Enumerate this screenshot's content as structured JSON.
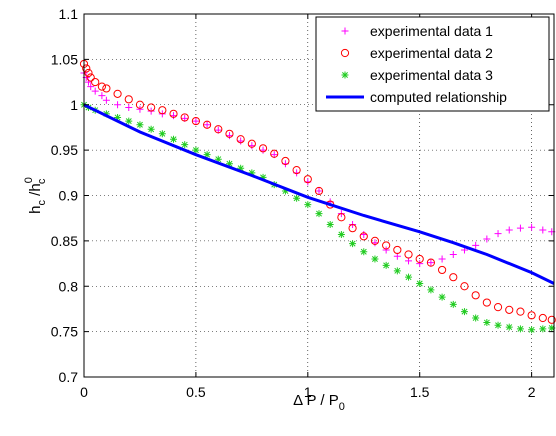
{
  "chart_data": {
    "type": "scatter",
    "xlim": [
      0,
      2.1
    ],
    "ylim": [
      0.7,
      1.1
    ],
    "xticks": [
      "0",
      "0.5",
      "1",
      "1.5",
      "2"
    ],
    "yticks": [
      "0.7",
      "0.75",
      "0.8",
      "0.85",
      "0.9",
      "0.95",
      "1",
      "1.05",
      "1.1"
    ],
    "xlabel": {
      "main": "Δ P / P",
      "sub": "0"
    },
    "ylabel": {
      "main": "h",
      "sub1": "c",
      "mid": " /h",
      "sup": "0",
      "sub2": "c"
    },
    "grid": true,
    "legend_position": "top-right",
    "series": [
      {
        "name": "experimental data 1",
        "marker": "+",
        "color": "#ff00ff",
        "points": [
          [
            0.0,
            1.035
          ],
          [
            0.01,
            1.03
          ],
          [
            0.02,
            1.025
          ],
          [
            0.03,
            1.02
          ],
          [
            0.05,
            1.015
          ],
          [
            0.08,
            1.01
          ],
          [
            0.1,
            1.005
          ],
          [
            0.15,
            1.0
          ],
          [
            0.2,
            0.997
          ],
          [
            0.25,
            0.995
          ],
          [
            0.3,
            0.993
          ],
          [
            0.35,
            0.99
          ],
          [
            0.4,
            0.988
          ],
          [
            0.45,
            0.985
          ],
          [
            0.5,
            0.982
          ],
          [
            0.55,
            0.978
          ],
          [
            0.6,
            0.972
          ],
          [
            0.65,
            0.966
          ],
          [
            0.7,
            0.96
          ],
          [
            0.75,
            0.955
          ],
          [
            0.8,
            0.95
          ],
          [
            0.85,
            0.945
          ],
          [
            0.9,
            0.935
          ],
          [
            0.95,
            0.925
          ],
          [
            1.0,
            0.915
          ],
          [
            1.05,
            0.905
          ],
          [
            1.1,
            0.893
          ],
          [
            1.15,
            0.88
          ],
          [
            1.2,
            0.868
          ],
          [
            1.25,
            0.857
          ],
          [
            1.3,
            0.848
          ],
          [
            1.35,
            0.84
          ],
          [
            1.4,
            0.833
          ],
          [
            1.45,
            0.828
          ],
          [
            1.5,
            0.825
          ],
          [
            1.55,
            0.826
          ],
          [
            1.6,
            0.83
          ],
          [
            1.65,
            0.835
          ],
          [
            1.7,
            0.84
          ],
          [
            1.75,
            0.845
          ],
          [
            1.8,
            0.852
          ],
          [
            1.85,
            0.858
          ],
          [
            1.9,
            0.862
          ],
          [
            1.95,
            0.864
          ],
          [
            2.0,
            0.865
          ],
          [
            2.05,
            0.862
          ],
          [
            2.09,
            0.86
          ]
        ]
      },
      {
        "name": "experimental data 2",
        "marker": "o",
        "color": "#ff0000",
        "points": [
          [
            0.0,
            1.045
          ],
          [
            0.01,
            1.04
          ],
          [
            0.02,
            1.035
          ],
          [
            0.03,
            1.03
          ],
          [
            0.05,
            1.025
          ],
          [
            0.08,
            1.02
          ],
          [
            0.1,
            1.018
          ],
          [
            0.15,
            1.012
          ],
          [
            0.2,
            1.006
          ],
          [
            0.25,
            1.0
          ],
          [
            0.3,
            0.997
          ],
          [
            0.35,
            0.994
          ],
          [
            0.4,
            0.99
          ],
          [
            0.45,
            0.986
          ],
          [
            0.5,
            0.982
          ],
          [
            0.55,
            0.978
          ],
          [
            0.6,
            0.973
          ],
          [
            0.65,
            0.968
          ],
          [
            0.7,
            0.962
          ],
          [
            0.75,
            0.957
          ],
          [
            0.8,
            0.952
          ],
          [
            0.85,
            0.946
          ],
          [
            0.9,
            0.938
          ],
          [
            0.95,
            0.928
          ],
          [
            1.0,
            0.918
          ],
          [
            1.05,
            0.905
          ],
          [
            1.1,
            0.89
          ],
          [
            1.15,
            0.876
          ],
          [
            1.2,
            0.864
          ],
          [
            1.25,
            0.855
          ],
          [
            1.3,
            0.85
          ],
          [
            1.35,
            0.845
          ],
          [
            1.4,
            0.84
          ],
          [
            1.45,
            0.835
          ],
          [
            1.5,
            0.83
          ],
          [
            1.55,
            0.826
          ],
          [
            1.6,
            0.818
          ],
          [
            1.65,
            0.81
          ],
          [
            1.7,
            0.8
          ],
          [
            1.75,
            0.79
          ],
          [
            1.8,
            0.782
          ],
          [
            1.85,
            0.777
          ],
          [
            1.9,
            0.774
          ],
          [
            1.95,
            0.772
          ],
          [
            2.0,
            0.768
          ],
          [
            2.05,
            0.765
          ],
          [
            2.09,
            0.763
          ]
        ]
      },
      {
        "name": "experimental data 3",
        "marker": "*",
        "color": "#22cc22",
        "points": [
          [
            0.0,
            1.0
          ],
          [
            0.02,
            0.997
          ],
          [
            0.05,
            0.994
          ],
          [
            0.1,
            0.99
          ],
          [
            0.15,
            0.986
          ],
          [
            0.2,
            0.982
          ],
          [
            0.25,
            0.978
          ],
          [
            0.3,
            0.973
          ],
          [
            0.35,
            0.968
          ],
          [
            0.4,
            0.962
          ],
          [
            0.45,
            0.956
          ],
          [
            0.5,
            0.95
          ],
          [
            0.55,
            0.945
          ],
          [
            0.6,
            0.94
          ],
          [
            0.65,
            0.935
          ],
          [
            0.7,
            0.93
          ],
          [
            0.75,
            0.925
          ],
          [
            0.8,
            0.92
          ],
          [
            0.85,
            0.912
          ],
          [
            0.9,
            0.905
          ],
          [
            0.95,
            0.897
          ],
          [
            1.0,
            0.89
          ],
          [
            1.05,
            0.88
          ],
          [
            1.1,
            0.868
          ],
          [
            1.15,
            0.857
          ],
          [
            1.2,
            0.847
          ],
          [
            1.25,
            0.838
          ],
          [
            1.3,
            0.83
          ],
          [
            1.35,
            0.823
          ],
          [
            1.4,
            0.817
          ],
          [
            1.45,
            0.81
          ],
          [
            1.5,
            0.803
          ],
          [
            1.55,
            0.796
          ],
          [
            1.6,
            0.788
          ],
          [
            1.65,
            0.78
          ],
          [
            1.7,
            0.772
          ],
          [
            1.75,
            0.765
          ],
          [
            1.8,
            0.76
          ],
          [
            1.85,
            0.757
          ],
          [
            1.9,
            0.755
          ],
          [
            1.95,
            0.753
          ],
          [
            2.0,
            0.752
          ],
          [
            2.05,
            0.753
          ],
          [
            2.09,
            0.754
          ]
        ]
      },
      {
        "name": "computed relationship",
        "marker": "line",
        "color": "#0000ff",
        "points": [
          [
            0.0,
            1.0
          ],
          [
            0.25,
            0.97
          ],
          [
            0.5,
            0.945
          ],
          [
            0.75,
            0.922
          ],
          [
            1.0,
            0.898
          ],
          [
            1.25,
            0.878
          ],
          [
            1.5,
            0.86
          ],
          [
            1.65,
            0.848
          ],
          [
            1.8,
            0.835
          ],
          [
            2.0,
            0.815
          ],
          [
            2.1,
            0.803
          ]
        ]
      }
    ]
  }
}
